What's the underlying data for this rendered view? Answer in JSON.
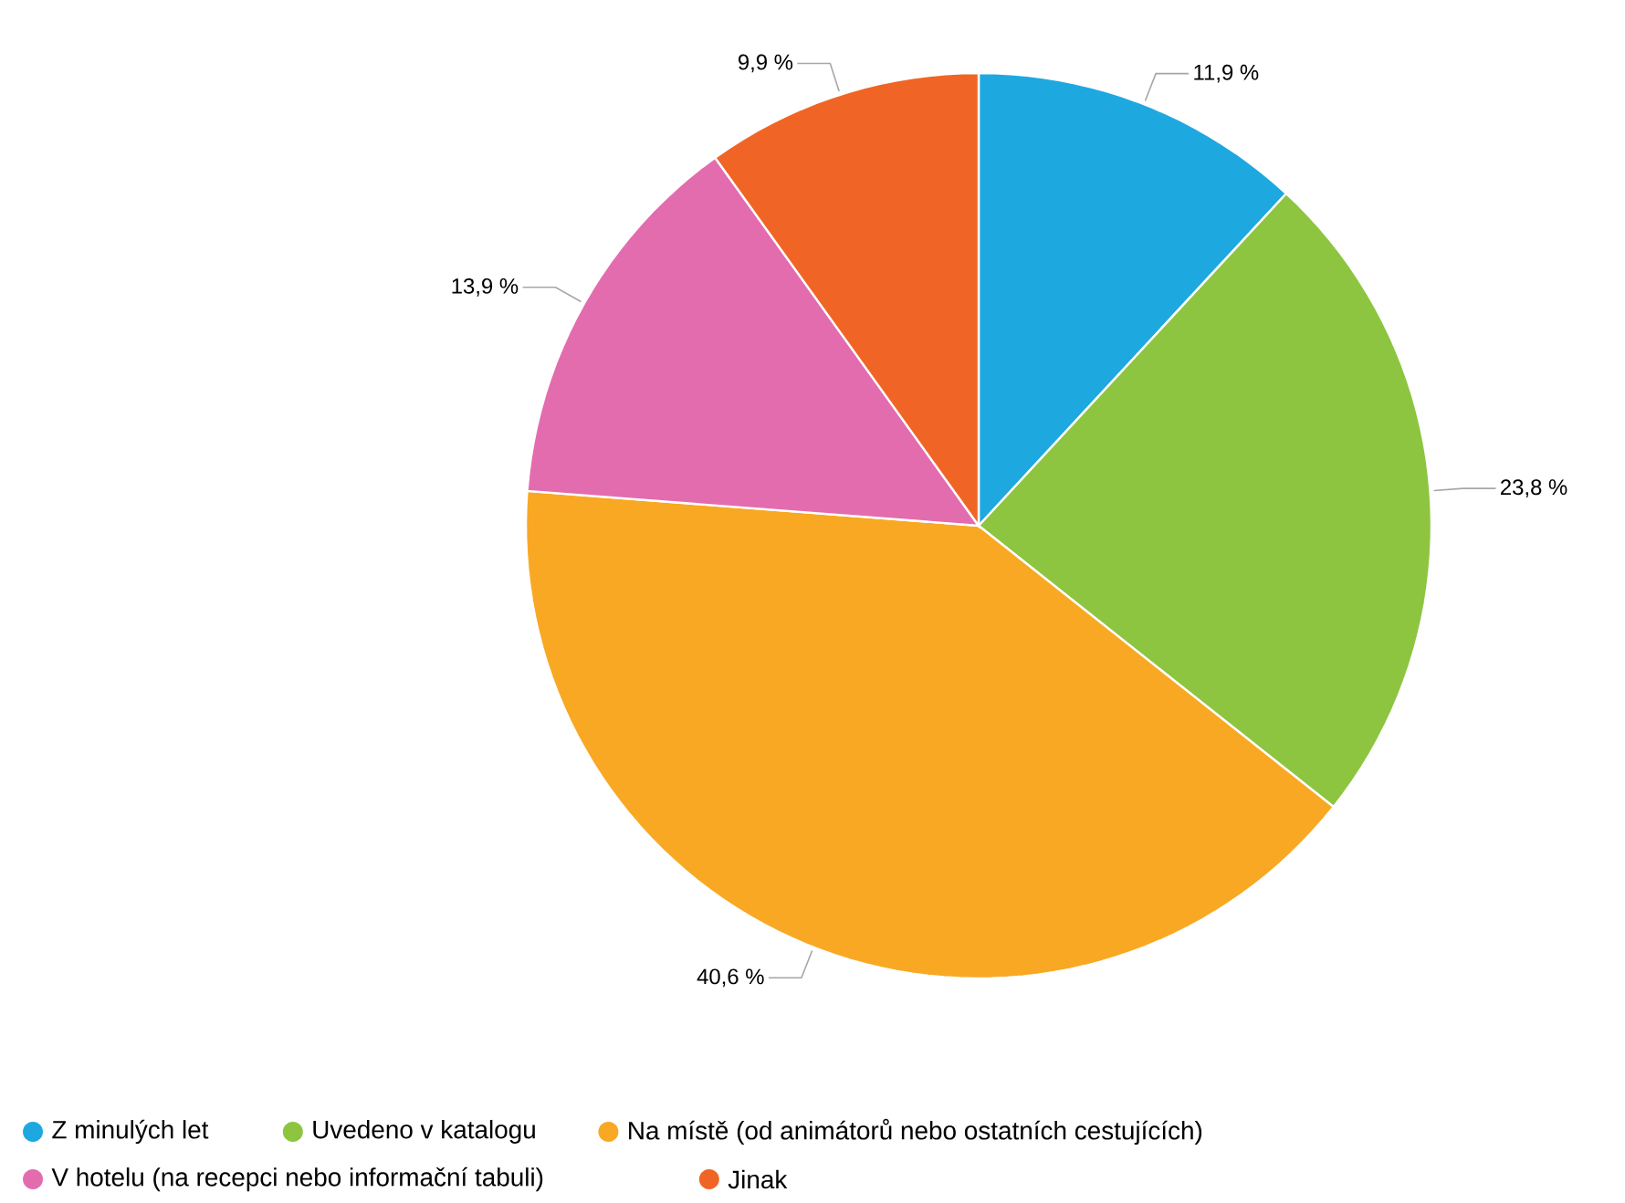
{
  "chart_data": {
    "type": "pie",
    "categories": [
      "Z minulých let",
      "Uvedeno v katalogu",
      "Na místě (od animátorů nebo ostatních cestujících)",
      "V hotelu (na recepci nebo informační tabuli)",
      "Jinak"
    ],
    "values": [
      11.9,
      23.8,
      40.6,
      13.9,
      9.9
    ],
    "colors": [
      "#1ea8e0",
      "#8dc540",
      "#f9a823",
      "#e36caf",
      "#f06525"
    ],
    "value_labels": [
      "11,9 %",
      "23,8 %",
      "40,6 %",
      "13,9 %",
      "9,9 %"
    ],
    "legend": "bottom"
  }
}
